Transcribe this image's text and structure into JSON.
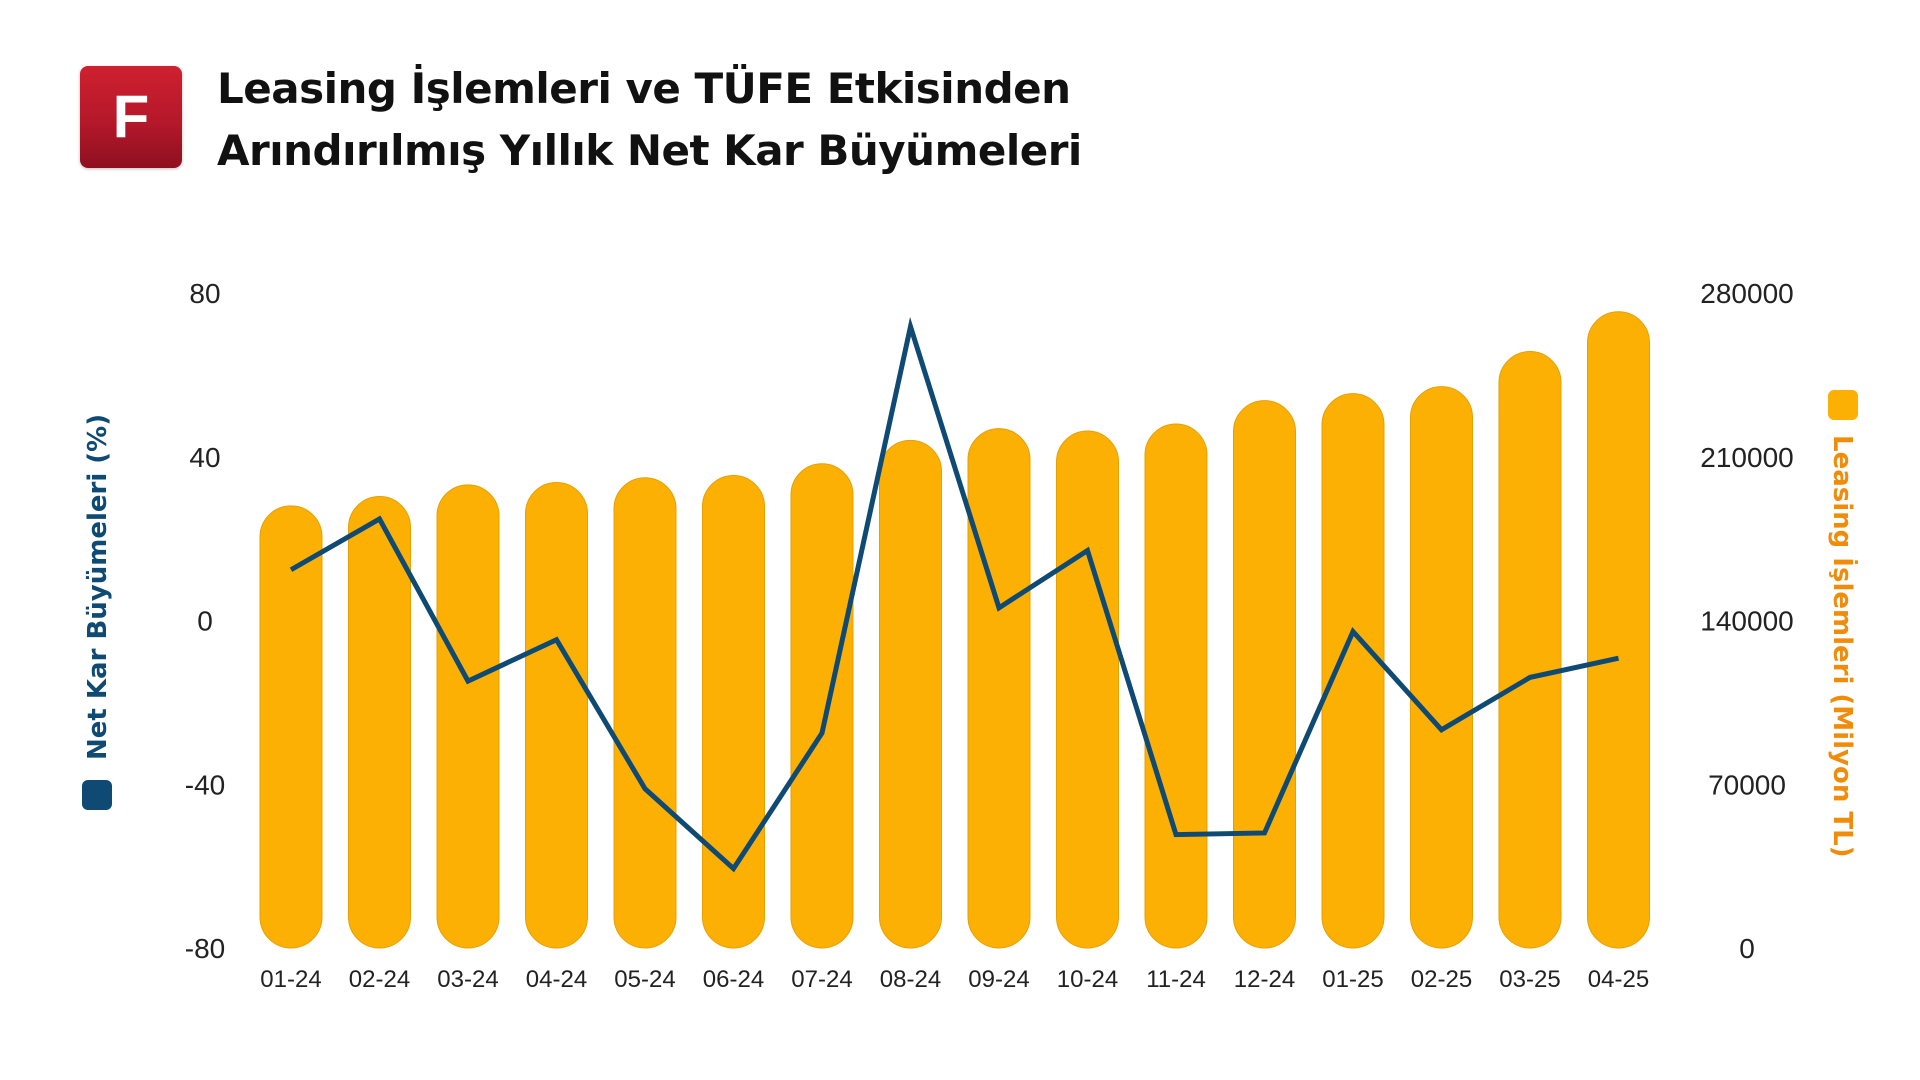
{
  "logo": {
    "letter": "F"
  },
  "title": {
    "line1": "Leasing İşlemleri ve TÜFE Etkisinden",
    "line2": "Arındırılmış Yıllık Net Kar Büyümeleri"
  },
  "colors": {
    "bar": "#FDB004",
    "bar_edge": "#E6A000",
    "line": "#0E4A73",
    "left_label": "#0E4A73",
    "right_label": "#F08C0A",
    "logo": "#C41E2E"
  },
  "chart_data": {
    "type": "bar",
    "combo": "bar-line-dual-axis",
    "categories": [
      "01-24",
      "02-24",
      "03-24",
      "04-24",
      "05-24",
      "06-24",
      "07-24",
      "08-24",
      "09-24",
      "10-24",
      "11-24",
      "12-24",
      "01-25",
      "02-25",
      "03-25",
      "04-25"
    ],
    "series": [
      {
        "name": "Leasing İşlemleri (Milyon TL)",
        "type": "bar",
        "axis": "right",
        "values": [
          189000,
          193000,
          198000,
          199000,
          201000,
          202000,
          207000,
          217000,
          222000,
          221000,
          224000,
          234000,
          237000,
          240000,
          255000,
          272000
        ]
      },
      {
        "name": "Net Kar Büyümeleri (%)",
        "type": "line",
        "axis": "left",
        "values": [
          12.4,
          24.8,
          -14.8,
          -4.7,
          -41.1,
          -60.6,
          -27.5,
          71.8,
          3.1,
          17.1,
          -52.3,
          -51.9,
          -2.7,
          -26.7,
          -13.9,
          -9.2
        ]
      }
    ],
    "y_left": {
      "label": "Net Kar Büyümeleri (%)",
      "ylim": [
        -80,
        80
      ],
      "ticks": [
        "80",
        "40",
        "0",
        "-40",
        "-80"
      ]
    },
    "y_right": {
      "label": "Leasing İşlemleri (Milyon TL)",
      "ylim": [
        0,
        280000
      ],
      "ticks": [
        "280000",
        "210000",
        "140000",
        "70000",
        "0"
      ]
    },
    "grid": false,
    "legend": "vertical axis labels with color markers (left and right)"
  }
}
